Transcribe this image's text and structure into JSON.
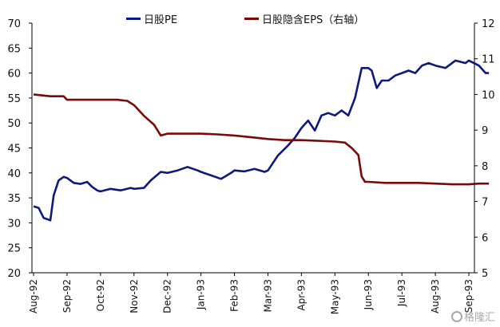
{
  "chart_data": {
    "type": "line",
    "title": "",
    "xlabel": "",
    "ylabel": "",
    "x_tick_labels": [
      "Aug-92",
      "Sep-92",
      "Oct-92",
      "Nov-92",
      "Dec-92",
      "Jan-93",
      "Feb-93",
      "Mar-93",
      "Apr-93",
      "May-93",
      "Jun-93",
      "Jul-93",
      "Aug-93",
      "Sep-93"
    ],
    "y_left_ticks": [
      20,
      25,
      30,
      35,
      40,
      45,
      50,
      55,
      60,
      65,
      70
    ],
    "y_right_ticks": [
      5,
      6,
      7,
      8,
      9,
      10,
      11,
      12
    ],
    "ylim_left": [
      20,
      70
    ],
    "ylim_right": [
      5,
      12
    ],
    "grid": false,
    "legend_position": "top",
    "series": [
      {
        "name": "日股PE",
        "axis": "left",
        "color": "#0d1a7a",
        "points": [
          [
            "Aug-92",
            33.3
          ],
          [
            "Aug-92+0.15",
            33.0
          ],
          [
            "Aug-92+0.3",
            31.0
          ],
          [
            "Aug-92+0.5",
            30.5
          ],
          [
            "Aug-92+0.6",
            35.5
          ],
          [
            "Aug-92+0.75",
            38.5
          ],
          [
            "Aug-92+0.9",
            39.2
          ],
          [
            "Sep-92",
            39.0
          ],
          [
            "Sep-92+0.2",
            38.0
          ],
          [
            "Sep-92+0.4",
            37.8
          ],
          [
            "Sep-92+0.6",
            38.2
          ],
          [
            "Sep-92+0.75",
            37.2
          ],
          [
            "Sep-92+0.9",
            36.5
          ],
          [
            "Oct-92",
            36.3
          ],
          [
            "Oct-92+0.3",
            36.8
          ],
          [
            "Oct-92+0.6",
            36.5
          ],
          [
            "Oct-92+0.9",
            37.0
          ],
          [
            "Nov-92",
            36.8
          ],
          [
            "Nov-92+0.3",
            37.0
          ],
          [
            "Nov-92+0.5",
            38.5
          ],
          [
            "Nov-92+0.8",
            40.2
          ],
          [
            "Dec-92",
            40.0
          ],
          [
            "Dec-92+0.3",
            40.5
          ],
          [
            "Dec-92+0.6",
            41.2
          ],
          [
            "Dec-92+0.9",
            40.5
          ],
          [
            "Jan-93",
            40.2
          ],
          [
            "Jan-93+0.3",
            39.5
          ],
          [
            "Jan-93+0.6",
            38.8
          ],
          [
            "Jan-93+0.9",
            40.0
          ],
          [
            "Feb-93",
            40.5
          ],
          [
            "Feb-93+0.3",
            40.3
          ],
          [
            "Feb-93+0.6",
            40.8
          ],
          [
            "Feb-93+0.9",
            40.2
          ],
          [
            "Mar-93",
            40.5
          ],
          [
            "Mar-93+0.3",
            43.5
          ],
          [
            "Mar-93+0.6",
            45.5
          ],
          [
            "Mar-93+0.8",
            47.0
          ],
          [
            "Apr-93",
            49.0
          ],
          [
            "Apr-93+0.2",
            50.5
          ],
          [
            "Apr-93+0.4",
            48.5
          ],
          [
            "Apr-93+0.6",
            51.5
          ],
          [
            "Apr-93+0.8",
            52.0
          ],
          [
            "May-93",
            51.5
          ],
          [
            "May-93+0.2",
            52.5
          ],
          [
            "May-93+0.4",
            51.5
          ],
          [
            "May-93+0.6",
            55.0
          ],
          [
            "May-93+0.8",
            61.0
          ],
          [
            "Jun-93",
            61.0
          ],
          [
            "Jun-93+0.1",
            60.5
          ],
          [
            "Jun-93+0.25",
            57.0
          ],
          [
            "Jun-93+0.4",
            58.5
          ],
          [
            "Jun-93+0.6",
            58.5
          ],
          [
            "Jun-93+0.8",
            59.5
          ],
          [
            "Jul-93",
            60.0
          ],
          [
            "Jul-93+0.2",
            60.5
          ],
          [
            "Jul-93+0.4",
            60.0
          ],
          [
            "Jul-93+0.6",
            61.5
          ],
          [
            "Jul-93+0.8",
            62.0
          ],
          [
            "Aug-93",
            61.5
          ],
          [
            "Aug-93+0.3",
            61.0
          ],
          [
            "Aug-93+0.6",
            62.5
          ],
          [
            "Aug-93+0.9",
            62.0
          ],
          [
            "Sep-93",
            62.5
          ],
          [
            "Sep-93+0.3",
            61.5
          ],
          [
            "Sep-93+0.5",
            60.0
          ],
          [
            "Sep-93+0.6",
            60.0
          ]
        ]
      },
      {
        "name": "日股隐含EPS（右轴）",
        "axis": "right",
        "color": "#7a0a0a",
        "points": [
          [
            "Aug-92",
            10.0
          ],
          [
            "Aug-92+0.5",
            9.95
          ],
          [
            "Aug-92+0.9",
            9.95
          ],
          [
            "Sep-92",
            9.85
          ],
          [
            "Sep-92+0.5",
            9.85
          ],
          [
            "Oct-92",
            9.85
          ],
          [
            "Oct-92+0.5",
            9.85
          ],
          [
            "Oct-92+0.8",
            9.82
          ],
          [
            "Nov-92",
            9.7
          ],
          [
            "Nov-92+0.3",
            9.4
          ],
          [
            "Nov-92+0.6",
            9.15
          ],
          [
            "Nov-92+0.8",
            8.85
          ],
          [
            "Dec-92",
            8.9
          ],
          [
            "Dec-92+0.5",
            8.9
          ],
          [
            "Jan-93",
            8.9
          ],
          [
            "Jan-93+0.5",
            8.88
          ],
          [
            "Feb-93",
            8.85
          ],
          [
            "Feb-93+0.5",
            8.8
          ],
          [
            "Mar-93",
            8.75
          ],
          [
            "Mar-93+0.5",
            8.72
          ],
          [
            "Apr-93",
            8.72
          ],
          [
            "Apr-93+0.5",
            8.7
          ],
          [
            "May-93",
            8.68
          ],
          [
            "May-93+0.3",
            8.65
          ],
          [
            "May-93+0.5",
            8.5
          ],
          [
            "May-93+0.7",
            8.3
          ],
          [
            "May-93+0.8",
            7.7
          ],
          [
            "May-93+0.9",
            7.55
          ],
          [
            "Jun-93",
            7.55
          ],
          [
            "Jun-93+0.5",
            7.52
          ],
          [
            "Jul-93",
            7.52
          ],
          [
            "Jul-93+0.5",
            7.52
          ],
          [
            "Aug-93",
            7.5
          ],
          [
            "Aug-93+0.5",
            7.48
          ],
          [
            "Sep-93",
            7.48
          ],
          [
            "Sep-93+0.3",
            7.5
          ],
          [
            "Sep-93+0.6",
            7.5
          ]
        ]
      }
    ]
  },
  "watermark": {
    "text": "格隆汇"
  }
}
